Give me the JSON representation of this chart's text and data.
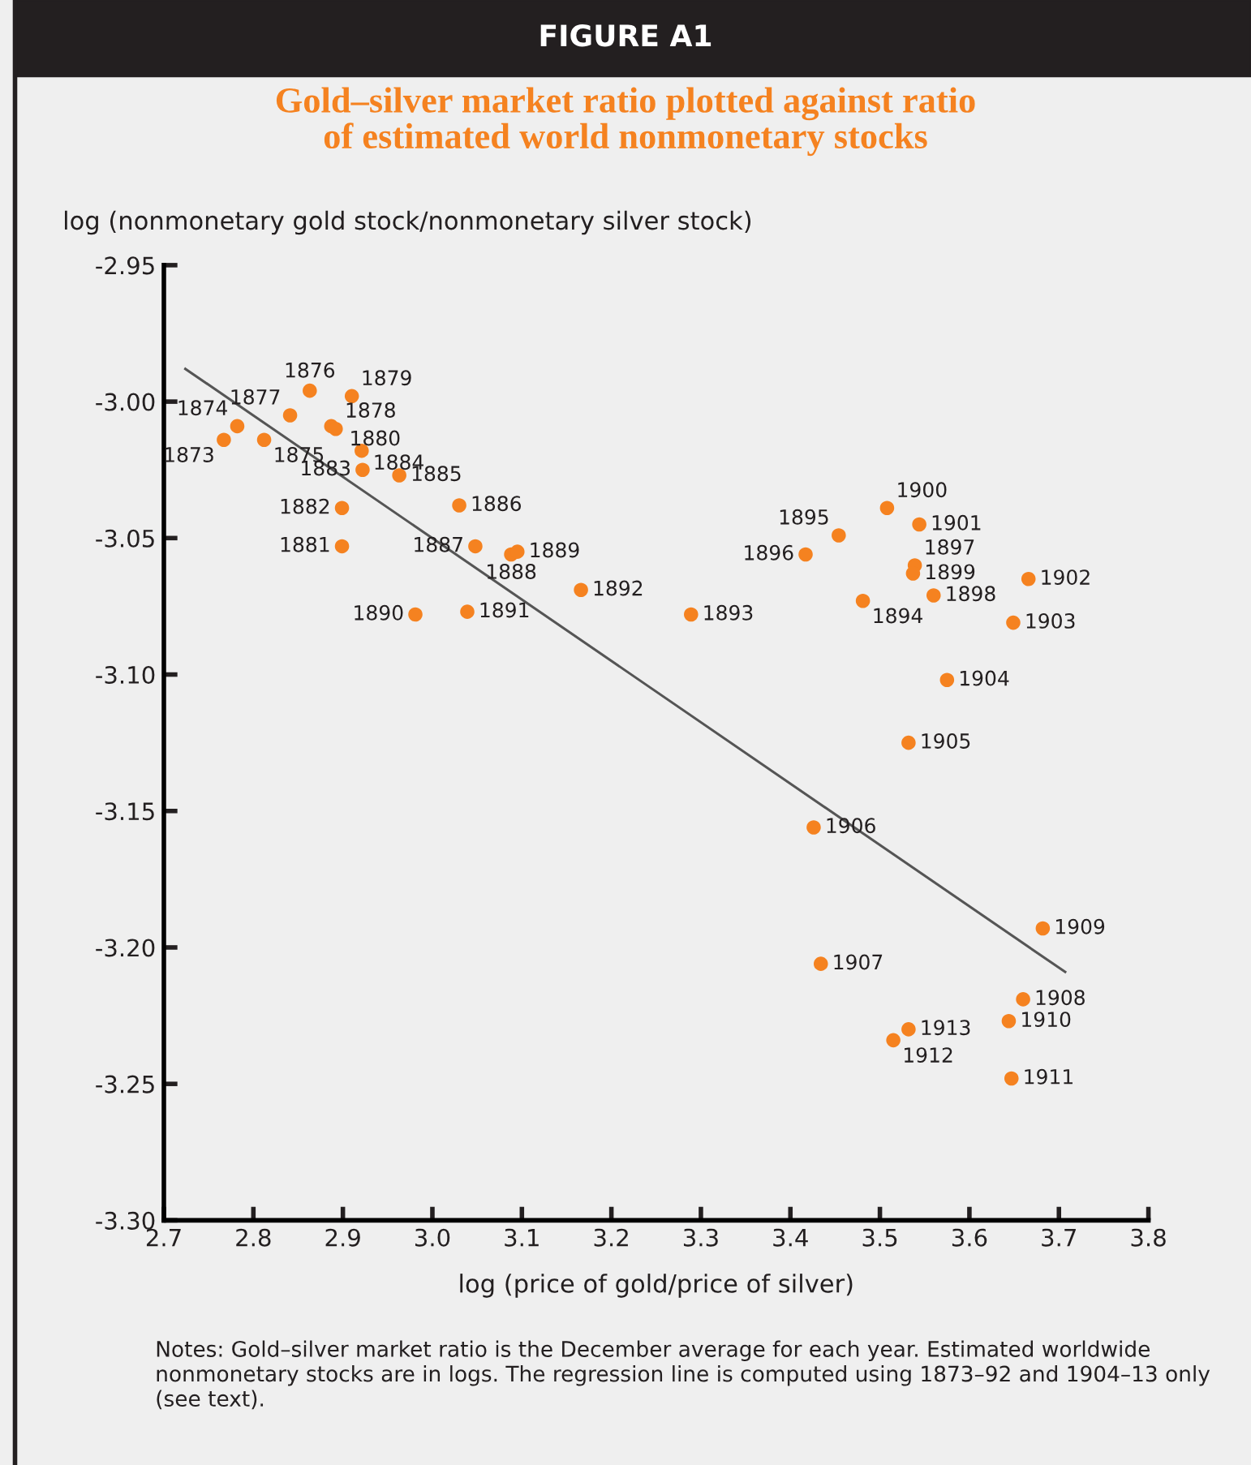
{
  "chart_data": {
    "type": "scatter",
    "title": "FIGURE A1",
    "subtitle": "Gold–silver market ratio plotted against ratio\nof estimated world nonmonetary stocks",
    "xlabel": "log (price of gold/price of silver)",
    "ylabel": "log (nonmonetary gold stock/nonmonetary silver stock)",
    "annotations": [
      "Notes: Gold–silver market ratio is the December average for each year. Estimated worldwide nonmonetary stocks are in logs. The regression line is computed using 1873–92 and 1904–13 only (see text).",
      {
        "text": "1873",
        "x": 2.767,
        "y": -3.014
      },
      {
        "text": "1874",
        "x": 2.782,
        "y": -3.009
      },
      {
        "text": "1875",
        "x": 2.812,
        "y": -3.014
      },
      {
        "text": "1876",
        "x": 2.863,
        "y": -2.996
      },
      {
        "text": "1877",
        "x": 2.841,
        "y": -3.005
      },
      {
        "text": "1878",
        "x": 2.887,
        "y": -3.009
      },
      {
        "text": "1879",
        "x": 2.91,
        "y": -2.998
      },
      {
        "text": "1880",
        "x": 2.892,
        "y": -3.01
      },
      {
        "text": "1881",
        "x": 2.899,
        "y": -3.053
      },
      {
        "text": "1882",
        "x": 2.899,
        "y": -3.039
      },
      {
        "text": "1883",
        "x": 2.922,
        "y": -3.025
      },
      {
        "text": "1884",
        "x": 2.921,
        "y": -3.018
      },
      {
        "text": "1885",
        "x": 2.963,
        "y": -3.027
      },
      {
        "text": "1886",
        "x": 3.03,
        "y": -3.038
      },
      {
        "text": "1887",
        "x": 3.048,
        "y": -3.053
      },
      {
        "text": "1888",
        "x": 3.088,
        "y": -3.056
      },
      {
        "text": "1889",
        "x": 3.095,
        "y": -3.055
      },
      {
        "text": "1890",
        "x": 2.981,
        "y": -3.078
      },
      {
        "text": "1891",
        "x": 3.039,
        "y": -3.077
      },
      {
        "text": "1892",
        "x": 3.166,
        "y": -3.069
      },
      {
        "text": "1893",
        "x": 3.289,
        "y": -3.078
      },
      {
        "text": "1894",
        "x": 3.481,
        "y": -3.073
      },
      {
        "text": "1895",
        "x": 3.454,
        "y": -3.049
      },
      {
        "text": "1896",
        "x": 3.417,
        "y": -3.056
      },
      {
        "text": "1897",
        "x": 3.539,
        "y": -3.06
      },
      {
        "text": "1898",
        "x": 3.56,
        "y": -3.071
      },
      {
        "text": "1899",
        "x": 3.537,
        "y": -3.063
      },
      {
        "text": "1900",
        "x": 3.508,
        "y": -3.039
      },
      {
        "text": "1901",
        "x": 3.544,
        "y": -3.045
      },
      {
        "text": "1902",
        "x": 3.666,
        "y": -3.065
      },
      {
        "text": "1903",
        "x": 3.649,
        "y": -3.081
      },
      {
        "text": "1904",
        "x": 3.575,
        "y": -3.102
      },
      {
        "text": "1905",
        "x": 3.532,
        "y": -3.125
      },
      {
        "text": "1906",
        "x": 3.426,
        "y": -3.156
      },
      {
        "text": "1907",
        "x": 3.434,
        "y": -3.206
      },
      {
        "text": "1908",
        "x": 3.66,
        "y": -3.219
      },
      {
        "text": "1909",
        "x": 3.682,
        "y": -3.193
      },
      {
        "text": "1910",
        "x": 3.644,
        "y": -3.227
      },
      {
        "text": "1911",
        "x": 3.647,
        "y": -3.248
      },
      {
        "text": "1912",
        "x": 3.515,
        "y": -3.234
      },
      {
        "text": "1913",
        "x": 3.532,
        "y": -3.23
      }
    ],
    "xlim": [
      2.7,
      3.8
    ],
    "ylim": [
      -3.3,
      -2.95
    ],
    "xticks": [
      2.7,
      2.8,
      2.9,
      {
        "value": 3.0,
        "label": "3.0"
      },
      3.1,
      3.2,
      3.3,
      3.4,
      3.5,
      3.6,
      3.7,
      3.8
    ],
    "yticks": [
      {
        "value": -3.3,
        "label": "-3.30"
      },
      {
        "value": -3.25,
        "label": "-3.25"
      },
      {
        "value": -3.2,
        "label": "-3.20"
      },
      {
        "value": -3.15,
        "label": "-3.15"
      },
      {
        "value": -3.1,
        "label": "-3.10"
      },
      {
        "value": -3.05,
        "label": "-3.05"
      },
      {
        "value": -3.0,
        "label": "-3.00"
      },
      {
        "value": -2.95,
        "label": "-2.95"
      }
    ],
    "grid": false,
    "legend": false,
    "marker": "circle",
    "series": [
      {
        "type": "scatter",
        "color": "#f58220",
        "x": [
          2.767,
          2.782,
          2.812,
          2.863,
          2.841,
          2.887,
          2.91,
          2.892,
          2.899,
          2.899,
          2.922,
          2.921,
          2.963,
          3.03,
          3.048,
          3.088,
          3.095,
          2.981,
          3.039,
          3.166,
          3.289,
          3.481,
          3.454,
          3.417,
          3.539,
          3.56,
          3.537,
          3.508,
          3.544,
          3.666,
          3.649,
          3.575,
          3.532,
          3.426,
          3.434,
          3.66,
          3.682,
          3.644,
          3.647,
          3.515,
          3.532
        ],
        "values": [
          -3.014,
          -3.009,
          -3.014,
          -2.996,
          -3.005,
          -3.009,
          -2.998,
          -3.01,
          -3.053,
          -3.039,
          -3.025,
          -3.018,
          -3.027,
          -3.038,
          -3.053,
          -3.056,
          -3.055,
          -3.078,
          -3.077,
          -3.069,
          -3.078,
          -3.073,
          -3.049,
          -3.056,
          -3.06,
          -3.071,
          -3.063,
          -3.039,
          -3.045,
          -3.065,
          -3.081,
          -3.102,
          -3.125,
          -3.156,
          -3.206,
          -3.219,
          -3.193,
          -3.227,
          -3.248,
          -3.234,
          -3.23
        ]
      },
      {
        "type": "line",
        "color": "#555555",
        "line_style": "solid",
        "marker": "none",
        "x": [
          2.724,
          3.707
        ],
        "values": [
          -2.988,
          -3.209
        ]
      }
    ]
  }
}
